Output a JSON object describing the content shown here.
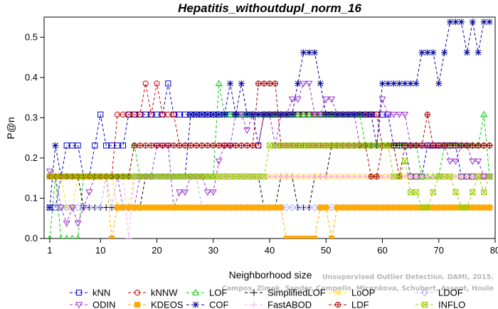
{
  "chart_data": {
    "type": "line",
    "title": "Hepatitis_withoutdupl_norm_16",
    "xlabel": "Neighborhood size",
    "ylabel": "P@n",
    "xlim": [
      0,
      80
    ],
    "ylim": [
      0,
      0.55
    ],
    "xticks": [
      1,
      10,
      20,
      30,
      40,
      50,
      60,
      70,
      80
    ],
    "yticks": [
      0.0,
      0.1,
      0.2,
      0.3,
      0.4,
      0.5
    ],
    "ytick_labels": [
      "0.0",
      "0.1",
      "0.2",
      "0.3",
      "0.4",
      "0.5"
    ],
    "grid": false,
    "legend_position": "bottom",
    "watermark": [
      "Campos, Zimek, Sander, Campello, Micenkova, Schubert, Assent, Houle",
      "Unsupervised Outlier Detection. DAMI, 2015."
    ],
    "series": [
      {
        "name": "kNN",
        "color": "#0000cc",
        "marker": "square",
        "points": [
          [
            1,
            0.077
          ],
          [
            2,
            0.077
          ],
          [
            3,
            0.154
          ],
          [
            4,
            0.231
          ],
          [
            6,
            0.231
          ],
          [
            7,
            0.154
          ],
          [
            9,
            0.231
          ],
          [
            10,
            0.308
          ],
          [
            11,
            0.231
          ],
          [
            14,
            0.231
          ],
          [
            15,
            0.308
          ],
          [
            21,
            0.308
          ],
          [
            22,
            0.385
          ],
          [
            23,
            0.308
          ],
          [
            37,
            0.308
          ],
          [
            38,
            0.231
          ],
          [
            39,
            0.308
          ],
          [
            61,
            0.308
          ],
          [
            62,
            0.231
          ],
          [
            64,
            0.231
          ],
          [
            65,
            0.154
          ],
          [
            67,
            0.154
          ],
          [
            68,
            0.231
          ],
          [
            73,
            0.231
          ],
          [
            74,
            0.154
          ],
          [
            79,
            0.154
          ]
        ]
      },
      {
        "name": "kNNW",
        "color": "#cc0000",
        "marker": "circle",
        "points": [
          [
            1,
            0.154
          ],
          [
            12,
            0.154
          ],
          [
            13,
            0.308
          ],
          [
            17,
            0.308
          ],
          [
            18,
            0.385
          ],
          [
            19,
            0.308
          ],
          [
            20,
            0.385
          ],
          [
            21,
            0.308
          ],
          [
            23,
            0.308
          ],
          [
            24,
            0.231
          ],
          [
            38,
            0.231
          ],
          [
            39,
            0.308
          ],
          [
            59,
            0.308
          ],
          [
            60,
            0.231
          ],
          [
            79,
            0.231
          ]
        ]
      },
      {
        "name": "LOF",
        "color": "#00cc00",
        "marker": "triangle-up",
        "points": [
          [
            1,
            0.0
          ],
          [
            2,
            0.154
          ],
          [
            3,
            0.0
          ],
          [
            6,
            0.0
          ],
          [
            7,
            0.154
          ],
          [
            15,
            0.154
          ],
          [
            16,
            0.231
          ],
          [
            17,
            0.154
          ],
          [
            30,
            0.154
          ],
          [
            31,
            0.385
          ],
          [
            32,
            0.308
          ],
          [
            56,
            0.308
          ],
          [
            57,
            0.231
          ],
          [
            66,
            0.231
          ],
          [
            67,
            0.154
          ],
          [
            70,
            0.154
          ],
          [
            71,
            0.231
          ],
          [
            77,
            0.231
          ],
          [
            78,
            0.308
          ],
          [
            79,
            0.154
          ]
        ]
      },
      {
        "name": "SimplifiedLOF",
        "color": "#000000",
        "marker": "plus",
        "points": [
          [
            1,
            0.154
          ],
          [
            6,
            0.154
          ],
          [
            7,
            0.077
          ],
          [
            17,
            0.077
          ],
          [
            18,
            0.154
          ],
          [
            38,
            0.154
          ],
          [
            39,
            0.077
          ],
          [
            41,
            0.077
          ],
          [
            42,
            0.154
          ],
          [
            44,
            0.154
          ],
          [
            45,
            0.077
          ],
          [
            47,
            0.077
          ],
          [
            48,
            0.154
          ],
          [
            50,
            0.154
          ],
          [
            51,
            0.231
          ],
          [
            79,
            0.231
          ]
        ]
      },
      {
        "name": "LoOP",
        "color": "#ffd700",
        "marker": "x",
        "points": [
          [
            1,
            0.154
          ],
          [
            3,
            0.154
          ],
          [
            4,
            0.077
          ],
          [
            5,
            0.077
          ],
          [
            6,
            0.154
          ],
          [
            12,
            0.154
          ],
          [
            13,
            0.077
          ],
          [
            15,
            0.077
          ],
          [
            16,
            0.154
          ],
          [
            79,
            0.154
          ]
        ]
      },
      {
        "name": "LDOF",
        "color": "#aaaaff",
        "marker": "diamond",
        "points": [
          [
            1,
            0.077
          ],
          [
            10,
            0.077
          ],
          [
            11,
            0.154
          ],
          [
            12,
            0.077
          ],
          [
            13,
            0.154
          ],
          [
            27,
            0.154
          ],
          [
            28,
            0.077
          ],
          [
            79,
            0.077
          ]
        ]
      },
      {
        "name": "ODIN",
        "color": "#9933cc",
        "marker": "triangle-down",
        "points": [
          [
            1,
            0.167
          ],
          [
            2,
            0.154
          ],
          [
            3,
            0.077
          ],
          [
            4,
            0.038
          ],
          [
            5,
            0.077
          ],
          [
            6,
            0.038
          ],
          [
            7,
            0.077
          ],
          [
            8,
            0.115
          ],
          [
            9,
            0.154
          ],
          [
            13,
            0.154
          ],
          [
            14,
            0.077
          ],
          [
            16,
            0.077
          ],
          [
            17,
            0.154
          ],
          [
            19,
            0.154
          ],
          [
            20,
            0.231
          ],
          [
            22,
            0.231
          ],
          [
            23,
            0.077
          ],
          [
            24,
            0.115
          ],
          [
            26,
            0.154
          ],
          [
            28,
            0.154
          ],
          [
            29,
            0.115
          ],
          [
            31,
            0.192
          ],
          [
            32,
            0.231
          ],
          [
            34,
            0.308
          ],
          [
            36,
            0.269
          ],
          [
            37,
            0.308
          ],
          [
            40,
            0.308
          ],
          [
            41,
            0.231
          ],
          [
            42,
            0.308
          ],
          [
            44,
            0.346
          ],
          [
            46,
            0.385
          ],
          [
            48,
            0.308
          ],
          [
            50,
            0.346
          ],
          [
            52,
            0.308
          ],
          [
            55,
            0.308
          ],
          [
            56,
            0.231
          ],
          [
            59,
            0.231
          ],
          [
            60,
            0.346
          ],
          [
            61,
            0.308
          ],
          [
            64,
            0.308
          ],
          [
            65,
            0.231
          ],
          [
            71,
            0.231
          ],
          [
            72,
            0.192
          ],
          [
            74,
            0.231
          ],
          [
            76,
            0.192
          ],
          [
            78,
            0.154
          ],
          [
            79,
            0.154
          ]
        ]
      },
      {
        "name": "KDEOS",
        "color": "#ffaa00",
        "marker": "square-filled",
        "points": [
          [
            1,
            0.154
          ],
          [
            11,
            0.154
          ],
          [
            12,
            0.0
          ],
          [
            13,
            0.077
          ],
          [
            42,
            0.077
          ],
          [
            43,
            0.0
          ],
          [
            48,
            0.0
          ],
          [
            49,
            0.077
          ],
          [
            50,
            0.077
          ],
          [
            51,
            0.0
          ],
          [
            52,
            0.077
          ],
          [
            79,
            0.077
          ]
        ]
      },
      {
        "name": "COF",
        "color": "#000099",
        "marker": "asterisk",
        "points": [
          [
            1,
            0.077
          ],
          [
            2,
            0.231
          ],
          [
            3,
            0.154
          ],
          [
            25,
            0.154
          ],
          [
            26,
            0.308
          ],
          [
            32,
            0.308
          ],
          [
            33,
            0.385
          ],
          [
            34,
            0.308
          ],
          [
            35,
            0.385
          ],
          [
            36,
            0.308
          ],
          [
            44,
            0.308
          ],
          [
            45,
            0.385
          ],
          [
            46,
            0.462
          ],
          [
            48,
            0.462
          ],
          [
            49,
            0.385
          ],
          [
            50,
            0.308
          ],
          [
            58,
            0.308
          ],
          [
            59,
            0.231
          ],
          [
            60,
            0.385
          ],
          [
            64,
            0.385
          ],
          [
            66,
            0.385
          ],
          [
            67,
            0.462
          ],
          [
            69,
            0.462
          ],
          [
            70,
            0.385
          ],
          [
            71,
            0.462
          ],
          [
            72,
            0.538
          ],
          [
            74,
            0.538
          ],
          [
            75,
            0.462
          ],
          [
            76,
            0.538
          ],
          [
            77,
            0.462
          ],
          [
            78,
            0.538
          ],
          [
            79,
            0.538
          ]
        ]
      },
      {
        "name": "FastABOD",
        "color": "#ffaaff",
        "marker": "plus",
        "points": [
          [
            1,
            0.154
          ],
          [
            14,
            0.154
          ],
          [
            15,
            0.0
          ],
          [
            16,
            0.154
          ],
          [
            24,
            0.154
          ],
          [
            25,
            0.154
          ],
          [
            79,
            0.154
          ]
        ]
      },
      {
        "name": "LDF",
        "color": "#aa0000",
        "marker": "circle-plus",
        "points": [
          [
            1,
            0.154
          ],
          [
            15,
            0.154
          ],
          [
            16,
            0.231
          ],
          [
            37,
            0.231
          ],
          [
            38,
            0.385
          ],
          [
            41,
            0.385
          ],
          [
            42,
            0.231
          ],
          [
            57,
            0.231
          ],
          [
            58,
            0.154
          ],
          [
            60,
            0.231
          ],
          [
            62,
            0.231
          ],
          [
            63,
            0.154
          ],
          [
            64,
            0.231
          ],
          [
            67,
            0.231
          ],
          [
            68,
            0.308
          ],
          [
            69,
            0.231
          ],
          [
            79,
            0.231
          ]
        ]
      },
      {
        "name": "INFLO",
        "color": "#99cc00",
        "marker": "boxx",
        "points": [
          [
            1,
            0.154
          ],
          [
            17,
            0.154
          ],
          [
            18,
            0.154
          ],
          [
            39,
            0.154
          ],
          [
            40,
            0.231
          ],
          [
            61,
            0.231
          ],
          [
            62,
            0.154
          ],
          [
            63,
            0.154
          ],
          [
            64,
            0.192
          ],
          [
            65,
            0.115
          ],
          [
            66,
            0.115
          ],
          [
            67,
            0.077
          ],
          [
            68,
            0.077
          ],
          [
            69,
            0.115
          ],
          [
            70,
            0.154
          ],
          [
            72,
            0.154
          ],
          [
            73,
            0.115
          ],
          [
            74,
            0.077
          ],
          [
            76,
            0.115
          ],
          [
            77,
            0.154
          ],
          [
            78,
            0.115
          ],
          [
            79,
            0.154
          ]
        ]
      }
    ]
  }
}
